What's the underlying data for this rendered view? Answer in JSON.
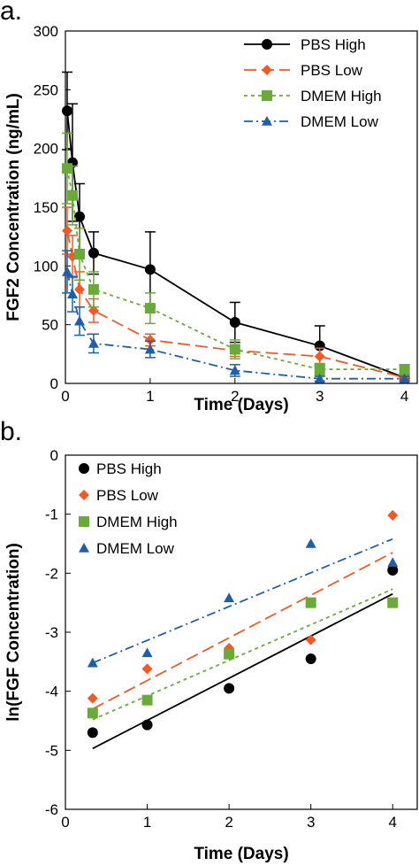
{
  "chart_data": [
    {
      "panel_label": "a.",
      "type": "line",
      "title": "",
      "xlabel": "Time (Days)",
      "ylabel": "FGF2 Concentration (ng/mL)",
      "xlim": [
        0,
        4.15
      ],
      "ylim": [
        0,
        300
      ],
      "xticks": [
        0,
        1,
        2,
        3,
        4
      ],
      "yticks": [
        0,
        50,
        100,
        150,
        200,
        250,
        300
      ],
      "grid": false,
      "legend": "top-right",
      "series": [
        {
          "name": "PBS High",
          "color": "#000000",
          "marker": "circle",
          "dash": "solid",
          "x": [
            0.021,
            0.083,
            0.167,
            0.333,
            1,
            2,
            3,
            4
          ],
          "y": [
            232,
            188,
            142,
            111,
            97,
            52,
            32,
            5
          ],
          "err": [
            33,
            50,
            28,
            18,
            32,
            17,
            17,
            3
          ]
        },
        {
          "name": "PBS Low",
          "color": "#f05a28",
          "marker": "diamond",
          "dash": "long-dash",
          "x": [
            0.021,
            0.083,
            0.167,
            0.333,
            1,
            2,
            3,
            4
          ],
          "y": [
            130,
            108,
            80,
            62,
            37,
            28,
            23,
            5
          ],
          "err": [
            20,
            18,
            15,
            10,
            5,
            5,
            7,
            2
          ]
        },
        {
          "name": "DMEM High",
          "color": "#6aaa3a",
          "marker": "square",
          "dash": "dotted",
          "x": [
            0.021,
            0.083,
            0.167,
            0.333,
            1,
            2,
            3,
            4
          ],
          "y": [
            183,
            160,
            110,
            80,
            64,
            29,
            12,
            12
          ],
          "err": [
            30,
            25,
            22,
            15,
            13,
            8,
            5,
            4
          ]
        },
        {
          "name": "DMEM Low",
          "color": "#1f5fa8",
          "marker": "triangle",
          "dash": "dash-dot",
          "x": [
            0.021,
            0.083,
            0.167,
            0.333,
            1,
            2,
            3,
            4
          ],
          "y": [
            95,
            76,
            53,
            34,
            29,
            11,
            4,
            4
          ],
          "err": [
            18,
            15,
            12,
            8,
            7,
            5,
            2,
            2
          ]
        }
      ]
    },
    {
      "panel_label": "b.",
      "type": "scatter",
      "title": "",
      "xlabel": "Time (Days)",
      "ylabel": "ln(FGF Concentration)",
      "xlim": [
        0,
        4.3
      ],
      "ylim": [
        -6,
        0
      ],
      "xticks": [
        0,
        1,
        2,
        3,
        4
      ],
      "yticks": [
        0,
        -1,
        -2,
        -3,
        -4,
        -5,
        -6
      ],
      "grid": false,
      "legend": "top-left",
      "series": [
        {
          "name": "PBS High",
          "color": "#000000",
          "marker": "circle",
          "dash": "solid",
          "x": [
            0.333,
            1,
            2,
            3,
            4
          ],
          "y": [
            -4.7,
            -4.57,
            -3.95,
            -3.45,
            -1.95
          ],
          "fit": {
            "x": [
              0.333,
              4
            ],
            "y": [
              -4.97,
              -2.35
            ]
          }
        },
        {
          "name": "PBS Low",
          "color": "#f05a28",
          "marker": "diamond",
          "dash": "long-dash",
          "x": [
            0.333,
            1,
            2,
            3,
            4
          ],
          "y": [
            -4.12,
            -3.62,
            -3.27,
            -3.13,
            -1.02
          ],
          "fit": {
            "x": [
              0.333,
              4
            ],
            "y": [
              -4.3,
              -1.65
            ]
          }
        },
        {
          "name": "DMEM High",
          "color": "#6aaa3a",
          "marker": "square",
          "dash": "dotted",
          "x": [
            0.333,
            1,
            2,
            3,
            4
          ],
          "y": [
            -4.37,
            -4.15,
            -3.37,
            -2.5,
            -2.5
          ],
          "fit": {
            "x": [
              0.333,
              4
            ],
            "y": [
              -4.48,
              -2.27
            ]
          }
        },
        {
          "name": "DMEM Low",
          "color": "#1f5fa8",
          "marker": "triangle",
          "dash": "dash-dot",
          "x": [
            0.333,
            1,
            2,
            3,
            4
          ],
          "y": [
            -3.52,
            -3.35,
            -2.42,
            -1.5,
            -1.82
          ],
          "fit": {
            "x": [
              0.333,
              4
            ],
            "y": [
              -3.52,
              -1.42
            ]
          }
        }
      ]
    }
  ]
}
